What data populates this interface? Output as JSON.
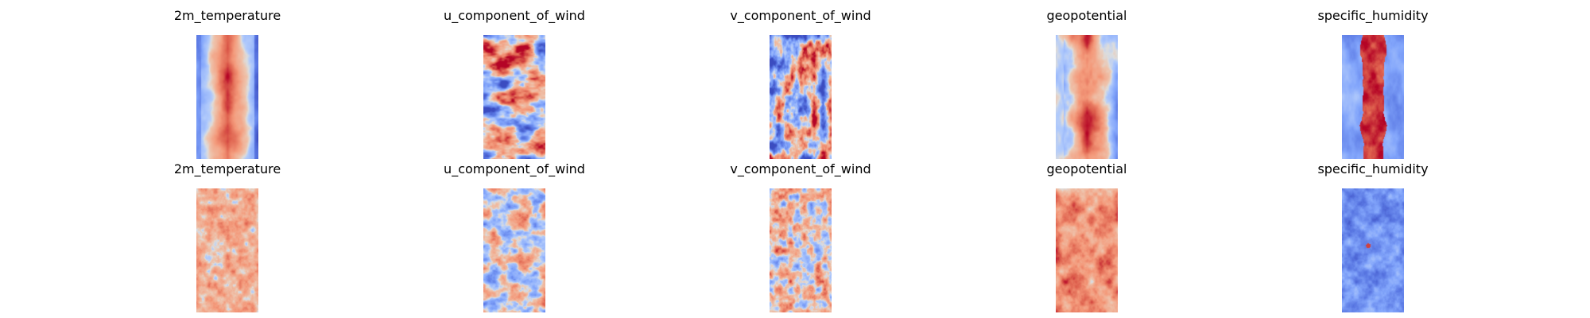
{
  "chart_data": {
    "type": "heatmap",
    "colormap": "coolwarm",
    "axes_visible": false,
    "layout": {
      "rows": 2,
      "columns": 5
    },
    "rows": [
      {
        "panels": [
          {
            "title": "2m_temperature",
            "pattern": "temperature_band",
            "seed": 11
          },
          {
            "title": "u_component_of_wind",
            "pattern": "wind_u",
            "seed": 23
          },
          {
            "title": "v_component_of_wind",
            "pattern": "wind_v",
            "seed": 37
          },
          {
            "title": "geopotential",
            "pattern": "geopotential",
            "seed": 41
          },
          {
            "title": "specific_humidity",
            "pattern": "humidity_band",
            "seed": 53
          }
        ]
      },
      {
        "panels": [
          {
            "title": "2m_temperature",
            "pattern": "noise_warm",
            "seed": 61
          },
          {
            "title": "u_component_of_wind",
            "pattern": "noise_neutral",
            "seed": 73
          },
          {
            "title": "v_component_of_wind",
            "pattern": "noise_neutral_warm",
            "seed": 89
          },
          {
            "title": "geopotential",
            "pattern": "noise_hot",
            "seed": 97
          },
          {
            "title": "specific_humidity",
            "pattern": "noise_cold",
            "seed": 103
          }
        ]
      }
    ]
  }
}
